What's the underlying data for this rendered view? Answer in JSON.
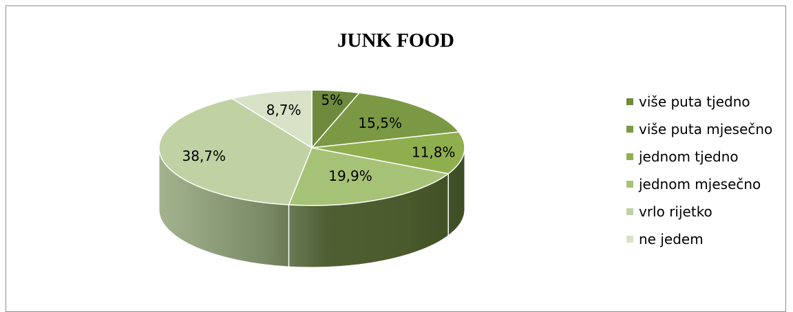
{
  "chart_data": {
    "type": "pie",
    "title": "JUNK FOOD",
    "categories": [
      "više puta tjedno",
      "više puta mjesečno",
      "jednom tjedno",
      "jednom mjesečno",
      "vrlo rijetko",
      "ne jedem"
    ],
    "values": [
      5,
      15.5,
      11.8,
      19.9,
      38.7,
      8.7
    ],
    "data_labels": [
      "5%",
      "15,5%",
      "11,8%",
      "19,9%",
      "38,7%",
      "8,7%"
    ],
    "colors": [
      "#6e8a3c",
      "#7b9944",
      "#8faf4e",
      "#a6c277",
      "#c0d1a4",
      "#d7e2c7"
    ],
    "style": "3d-pie",
    "legend_position": "right"
  }
}
